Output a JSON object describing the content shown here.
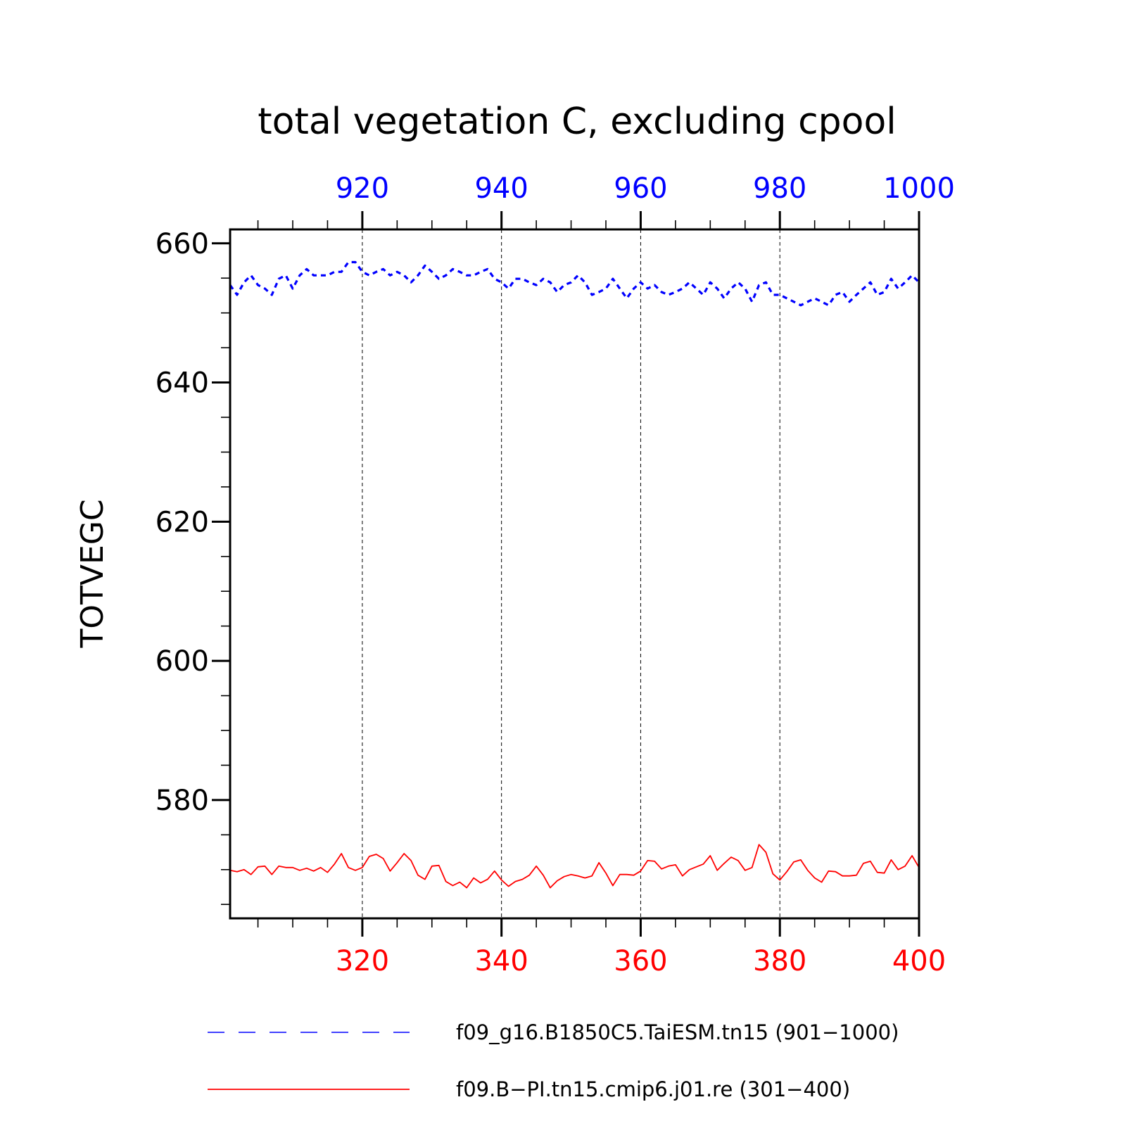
{
  "chart_data": {
    "type": "line",
    "title": "total vegetation C, excluding cpool",
    "ylabel": "TOTVEGC",
    "ylim": [
      563,
      662
    ],
    "yticks": [
      "580",
      "600",
      "620",
      "640",
      "660"
    ],
    "x_bottom": {
      "range": [
        301,
        400
      ],
      "ticks": [
        "320",
        "340",
        "360",
        "380",
        "400"
      ],
      "color": "#ff0000"
    },
    "x_top": {
      "range": [
        901,
        1000
      ],
      "ticks": [
        "920",
        "940",
        "960",
        "980",
        "1000"
      ],
      "color": "#0000ff"
    },
    "grid": "vertical-dashed",
    "legend_position": "bottom",
    "series": [
      {
        "name": "f09_g16.B1850C5.TaiESM.tn15 (901−1000)",
        "axis": "top",
        "color": "#0000ff",
        "style": "dashed",
        "x_start": 901,
        "values": [
          654.0,
          652.6,
          654.4,
          655.4,
          654.0,
          653.5,
          652.6,
          654.9,
          655.4,
          653.5,
          655.4,
          656.3,
          655.4,
          655.4,
          655.4,
          655.9,
          655.9,
          657.3,
          657.3,
          655.9,
          655.4,
          655.9,
          656.3,
          655.4,
          655.9,
          655.4,
          654.4,
          655.4,
          656.8,
          655.9,
          654.9,
          655.4,
          656.3,
          655.9,
          655.4,
          655.4,
          655.9,
          656.3,
          654.9,
          654.4,
          653.5,
          654.9,
          654.9,
          654.4,
          654.0,
          654.9,
          654.4,
          653.0,
          654.0,
          654.4,
          655.4,
          654.4,
          652.6,
          653.0,
          653.5,
          654.9,
          653.5,
          652.1,
          653.5,
          654.4,
          653.5,
          654.0,
          653.0,
          652.6,
          653.0,
          653.5,
          654.4,
          653.5,
          652.6,
          654.4,
          653.5,
          652.1,
          653.5,
          654.4,
          653.5,
          651.6,
          654.0,
          654.4,
          652.6,
          652.6,
          652.1,
          651.6,
          651.1,
          651.6,
          652.1,
          651.6,
          651.1,
          652.6,
          653.0,
          651.6,
          652.6,
          653.5,
          654.4,
          652.6,
          653.0,
          654.9,
          653.5,
          654.4,
          655.4,
          654.4
        ]
      },
      {
        "name": "f09.B−PI.tn15.cmip6.j01.re (301−400)",
        "axis": "bottom",
        "color": "#ff0000",
        "style": "solid",
        "x_start": 301,
        "values": [
          569.9,
          569.7,
          570.0,
          569.3,
          570.4,
          570.5,
          569.3,
          570.5,
          570.3,
          570.3,
          569.9,
          570.2,
          569.8,
          570.3,
          569.6,
          570.8,
          572.3,
          570.3,
          569.9,
          570.3,
          571.9,
          572.2,
          571.6,
          569.8,
          571.0,
          572.3,
          571.3,
          569.2,
          568.6,
          570.5,
          570.6,
          568.3,
          567.7,
          568.2,
          567.4,
          568.8,
          568.1,
          568.6,
          569.8,
          568.5,
          567.6,
          568.3,
          568.6,
          569.2,
          570.5,
          569.2,
          567.4,
          568.4,
          569.0,
          569.3,
          569.1,
          568.8,
          569.1,
          571.0,
          569.5,
          567.7,
          569.3,
          569.3,
          569.2,
          569.8,
          571.3,
          571.2,
          570.1,
          570.5,
          570.7,
          569.1,
          570.0,
          570.4,
          570.8,
          572.0,
          569.9,
          570.9,
          571.8,
          571.3,
          569.9,
          570.3,
          573.6,
          572.5,
          569.4,
          568.5,
          569.7,
          571.1,
          571.4,
          569.9,
          568.8,
          568.2,
          569.8,
          569.7,
          569.1,
          569.1,
          569.2,
          570.9,
          571.2,
          569.6,
          569.5,
          571.4,
          570.0,
          570.5,
          572.0,
          570.3
        ]
      }
    ]
  }
}
